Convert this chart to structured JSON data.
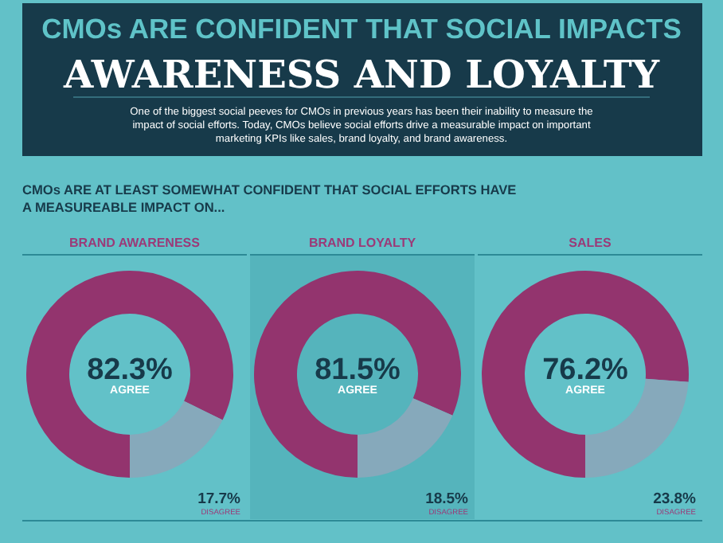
{
  "chart_data": [
    {
      "type": "other",
      "title": "CMOs ARE CONFIDENT THAT SOCIAL IMPACTS",
      "subtitle": "AWARENESS AND LOYALTY",
      "annotations": [
        "One of the biggest social peeves for CMOs in previous years has been their inability to measure the impact of social efforts. Today, CMOs believe social efforts drive a measurable impact on important marketing KPIs like sales, brand loyalty, and brand awareness.",
        "CMOs ARE AT LEAST SOMEWHAT CONFIDENT THAT SOCIAL EFFORTS HAVE A MEASUREABLE IMPACT ON..."
      ]
    },
    {
      "type": "donut",
      "title": "BRAND AWARENESS",
      "categories": [
        "AGREE",
        "DISAGREE"
      ],
      "values": [
        82.3,
        17.7
      ],
      "colors": [
        "#93346e",
        "#86a9bb"
      ],
      "value_labels": [
        "82.3%",
        "17.7%"
      ]
    },
    {
      "type": "donut",
      "title": "BRAND LOYALTY",
      "categories": [
        "AGREE",
        "DISAGREE"
      ],
      "values": [
        81.5,
        18.5
      ],
      "colors": [
        "#93346e",
        "#86a9bb"
      ],
      "value_labels": [
        "81.5%",
        "18.5%"
      ]
    },
    {
      "type": "donut",
      "title": "SALES",
      "categories": [
        "AGREE",
        "DISAGREE"
      ],
      "values": [
        76.2,
        23.8
      ],
      "colors": [
        "#93346e",
        "#86a9bb"
      ],
      "value_labels": [
        "76.2%",
        "23.8%"
      ]
    }
  ]
}
